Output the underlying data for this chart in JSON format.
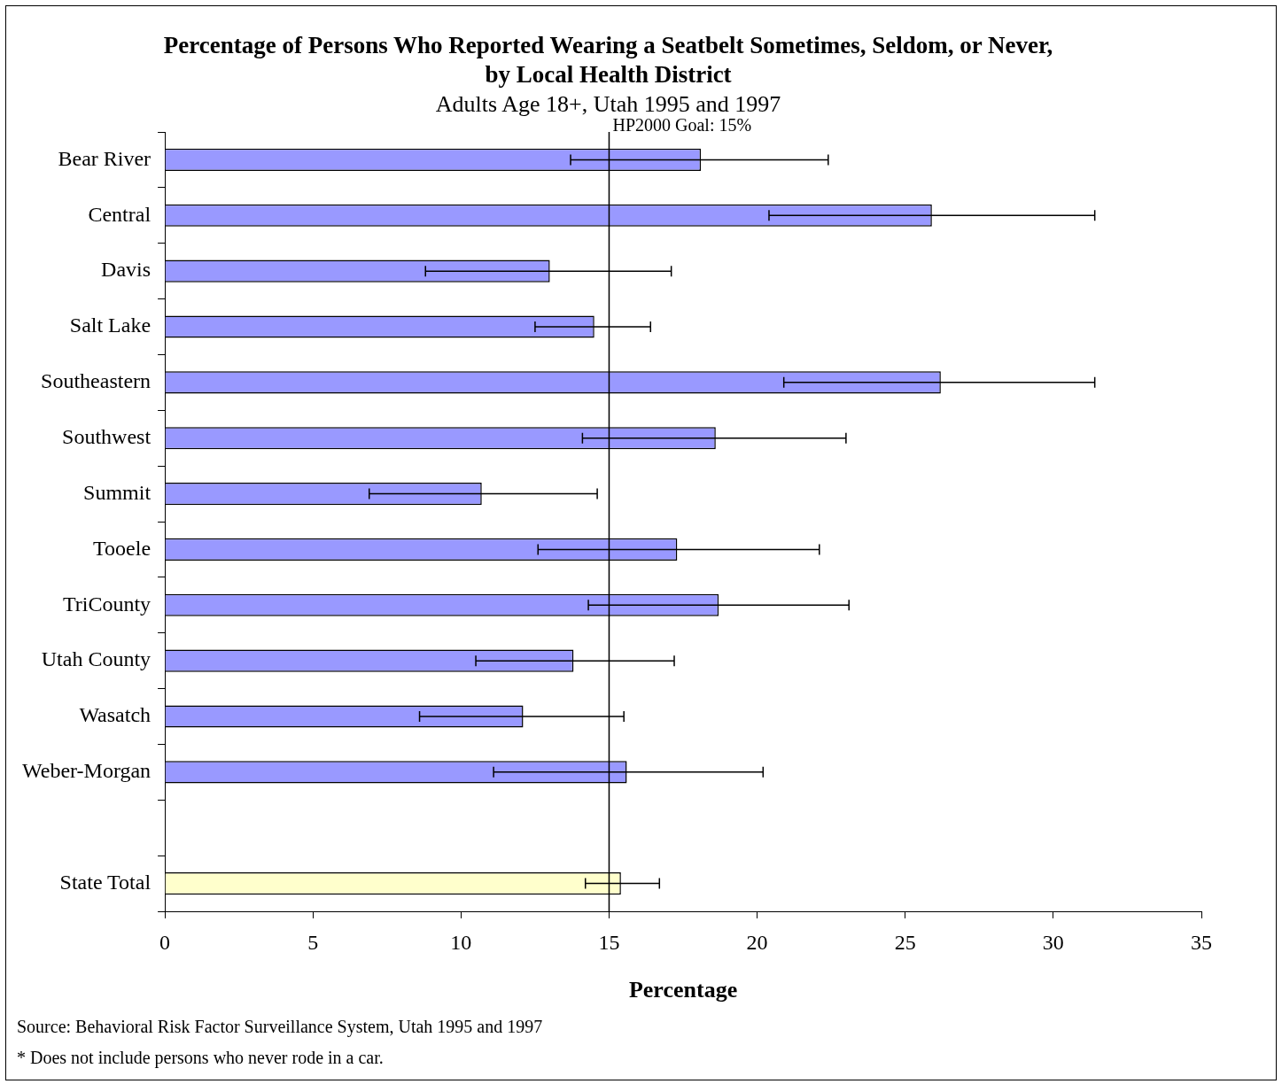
{
  "chart_data": {
    "type": "bar",
    "orientation": "horizontal",
    "title": [
      "Percentage of Persons Who Reported Wearing a Seatbelt Sometimes, Seldom, or Never,",
      "by Local Health District"
    ],
    "subtitle": "Adults Age 18+, Utah 1995 and 1997",
    "xlabel": "Percentage",
    "categories": [
      "Bear River",
      "Central",
      "Davis",
      "Salt Lake",
      "Southeastern",
      "Southwest",
      "Summit",
      "Tooele",
      "TriCounty",
      "Utah County",
      "Wasatch",
      "Weber-Morgan",
      null,
      "State Total"
    ],
    "values": [
      18.1,
      25.9,
      13.0,
      14.5,
      26.2,
      18.6,
      10.7,
      17.3,
      18.7,
      13.8,
      12.1,
      15.6,
      null,
      15.4
    ],
    "errors": [
      [
        13.7,
        22.4
      ],
      [
        20.4,
        31.4
      ],
      [
        8.8,
        17.1
      ],
      [
        12.5,
        16.4
      ],
      [
        20.9,
        31.4
      ],
      [
        14.1,
        23.0
      ],
      [
        6.9,
        14.6
      ],
      [
        12.6,
        22.1
      ],
      [
        14.3,
        23.1
      ],
      [
        10.5,
        17.2
      ],
      [
        8.6,
        15.5
      ],
      [
        11.1,
        20.2
      ],
      null,
      [
        14.2,
        16.7
      ]
    ],
    "colors": [
      "#9999ff",
      "#9999ff",
      "#9999ff",
      "#9999ff",
      "#9999ff",
      "#9999ff",
      "#9999ff",
      "#9999ff",
      "#9999ff",
      "#9999ff",
      "#9999ff",
      "#9999ff",
      "#9999ff",
      "#ffffcc"
    ],
    "xlim": [
      0,
      35
    ],
    "xticks": [
      0,
      5,
      10,
      15,
      20,
      25,
      30,
      35
    ],
    "ref_lines": [
      {
        "axis": "x",
        "value": 15,
        "label": "HP2000 Goal: 15%",
        "color": "#000000"
      }
    ],
    "grid": false,
    "legend": false,
    "annotations": [
      "Source: Behavioral Risk Factor Surveillance System, Utah 1995 and 1997",
      "* Does not include persons who never rode in a car."
    ]
  }
}
